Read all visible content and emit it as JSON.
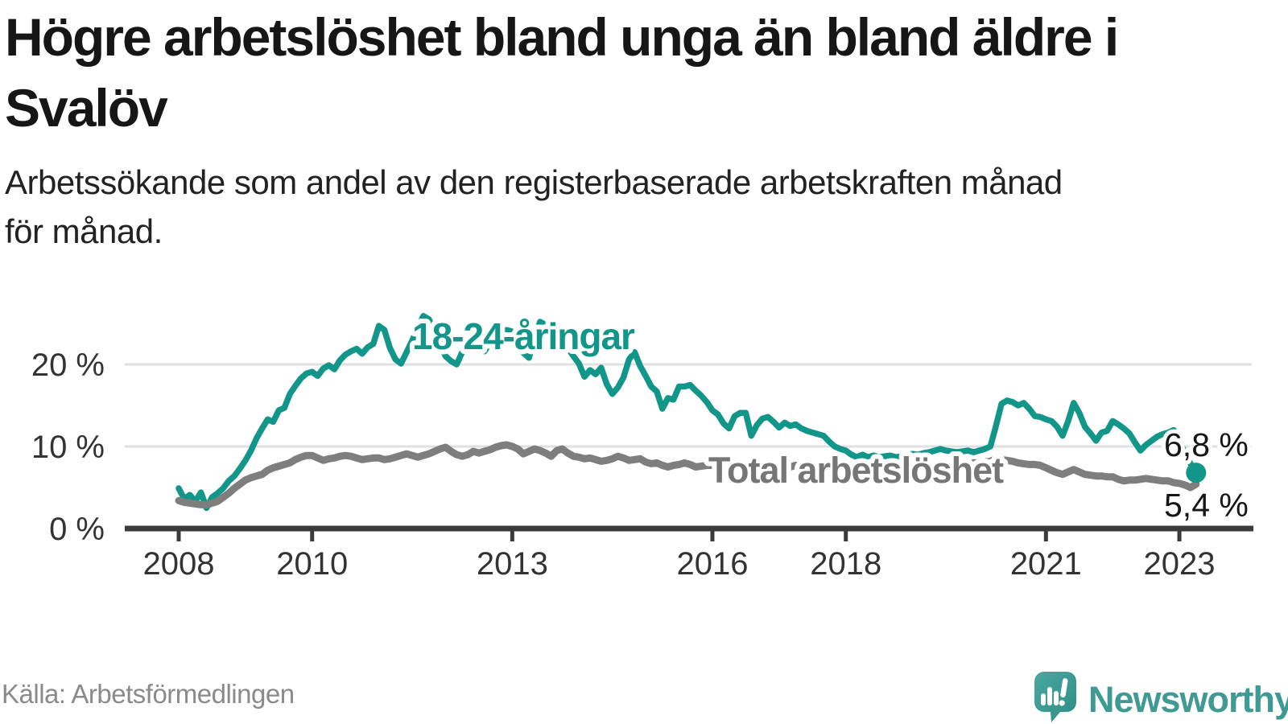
{
  "title_lines": [
    "Högre arbetslöshet bland unga än bland äldre i",
    "Svalöv"
  ],
  "subtitle_lines": [
    "Arbetssökande som andel av den registerbaserade arbetskraften månad",
    "för månad."
  ],
  "source": "Källa: Arbetsförmedlingen",
  "logo": {
    "text": "Newsworthy",
    "color": "#3E9A92",
    "icon": "speech-bubble-bar-chart-exclamation"
  },
  "colors": {
    "youth_line": "#12968A",
    "total_line": "#7E7E7E",
    "total_label": "#767676",
    "axis": "#3b3b3b",
    "grid": "#e0e0e0",
    "tick_label": "#333333",
    "end_label": "#161616"
  },
  "chart_data": {
    "type": "line",
    "unit": "%",
    "frequency": "monthly",
    "x_start": "2008-01",
    "x_end": "2023-04",
    "grid": "horizontal",
    "legend_position": "inline-annotations",
    "x_tick_years": [
      2008,
      2010,
      2013,
      2016,
      2018,
      2021,
      2023
    ],
    "x_tick_labels": [
      "2008",
      "2010",
      "2013",
      "2016",
      "2018",
      "2021",
      "2023"
    ],
    "y_ticks": [
      0,
      10,
      20
    ],
    "y_tick_labels": [
      "0 %",
      "10 %",
      "20 %"
    ],
    "ylim": [
      0,
      26.5
    ],
    "series": [
      {
        "name": "18-24-åringar",
        "color": "#12968A",
        "end_label": "6,8 %",
        "end_value": 6.8,
        "values": [
          4.9,
          3.6,
          4.1,
          3.3,
          4.4,
          2.5,
          3.8,
          4.3,
          4.9,
          5.8,
          6.4,
          7.3,
          8.3,
          9.5,
          11.0,
          12.2,
          13.3,
          13.0,
          14.4,
          14.7,
          16.4,
          17.4,
          18.3,
          18.9,
          19.1,
          18.6,
          19.5,
          19.9,
          19.4,
          20.5,
          21.2,
          21.6,
          21.9,
          21.3,
          22.1,
          22.5,
          24.7,
          24.2,
          22.0,
          20.6,
          20.1,
          21.5,
          22.9,
          24.5,
          25.9,
          25.5,
          24.0,
          22.5,
          21.0,
          20.4,
          20.0,
          21.5,
          23.0,
          23.5,
          22.5,
          21.6,
          22.6,
          23.6,
          24.0,
          24.2,
          24.0,
          22.6,
          21.4,
          20.8,
          23.2,
          25.2,
          24.8,
          24.0,
          23.4,
          22.8,
          22.0,
          21.0,
          20.1,
          18.5,
          19.3,
          18.8,
          19.6,
          17.6,
          16.4,
          17.2,
          18.4,
          20.6,
          21.5,
          19.8,
          18.6,
          17.3,
          16.7,
          14.6,
          15.9,
          15.7,
          17.3,
          17.3,
          17.5,
          16.8,
          16.2,
          15.4,
          14.4,
          13.9,
          12.8,
          12.2,
          13.7,
          14.1,
          14.1,
          11.3,
          12.6,
          13.4,
          13.6,
          13.0,
          12.3,
          12.9,
          12.5,
          12.7,
          12.2,
          11.9,
          11.7,
          11.5,
          11.3,
          10.6,
          10.0,
          9.7,
          9.5,
          9.0,
          8.7,
          9.0,
          8.7,
          8.9,
          8.7,
          8.8,
          8.9,
          8.7,
          8.8,
          9.0,
          9.1,
          9.0,
          9.2,
          9.3,
          9.5,
          9.7,
          9.5,
          9.4,
          9.3,
          9.4,
          9.5,
          9.3,
          9.5,
          9.7,
          10.0,
          12.5,
          15.2,
          15.6,
          15.4,
          15.0,
          15.3,
          14.6,
          13.7,
          13.6,
          13.3,
          13.1,
          12.4,
          11.3,
          13.1,
          15.3,
          14.1,
          12.4,
          11.6,
          10.7,
          11.7,
          11.9,
          13.1,
          12.7,
          12.2,
          11.6,
          10.5,
          9.5,
          10.2,
          10.7,
          11.2,
          11.5,
          11.7,
          12.0,
          10.6,
          9.2,
          7.9,
          6.8
        ]
      },
      {
        "name": "Total arbetslöshet",
        "color": "#7E7E7E",
        "end_label": "5,4 %",
        "end_value": 5.4,
        "values": [
          3.4,
          3.2,
          3.1,
          3.0,
          2.9,
          2.9,
          3.1,
          3.3,
          3.8,
          4.3,
          4.9,
          5.4,
          5.9,
          6.2,
          6.4,
          6.6,
          7.1,
          7.4,
          7.6,
          7.8,
          8.0,
          8.4,
          8.7,
          8.9,
          8.9,
          8.6,
          8.3,
          8.5,
          8.6,
          8.8,
          8.9,
          8.8,
          8.6,
          8.4,
          8.5,
          8.6,
          8.6,
          8.4,
          8.5,
          8.7,
          8.9,
          9.1,
          8.9,
          8.7,
          8.9,
          9.1,
          9.4,
          9.7,
          9.9,
          9.4,
          9.0,
          8.8,
          9.0,
          9.4,
          9.2,
          9.4,
          9.6,
          9.9,
          10.1,
          10.2,
          10.0,
          9.7,
          9.1,
          9.4,
          9.7,
          9.5,
          9.2,
          8.8,
          9.5,
          9.7,
          9.2,
          8.8,
          8.7,
          8.5,
          8.6,
          8.4,
          8.2,
          8.3,
          8.5,
          8.8,
          8.6,
          8.3,
          8.4,
          8.5,
          8.1,
          7.9,
          8.0,
          7.7,
          7.5,
          7.7,
          7.8,
          8.0,
          7.8,
          7.5,
          7.6,
          7.7,
          7.7,
          7.8,
          7.5,
          7.4,
          7.6,
          7.8,
          7.6,
          7.4,
          7.5,
          7.6,
          7.4,
          7.5,
          7.6,
          7.4,
          7.5,
          7.7,
          7.5,
          7.4,
          7.3,
          7.2,
          7.4,
          7.5,
          7.3,
          7.2,
          7.2,
          7.1,
          7.3,
          7.2,
          7.0,
          7.2,
          7.3,
          7.2,
          7.1,
          7.2,
          7.4,
          7.3,
          7.4,
          7.5,
          7.4,
          7.3,
          7.5,
          7.6,
          7.5,
          7.6,
          7.7,
          7.6,
          7.8,
          8.0,
          8.0,
          8.1,
          8.2,
          8.5,
          8.4,
          8.3,
          8.2,
          8.0,
          7.9,
          7.8,
          7.8,
          7.7,
          7.4,
          7.1,
          6.8,
          6.6,
          6.9,
          7.2,
          6.9,
          6.6,
          6.5,
          6.4,
          6.4,
          6.3,
          6.3,
          6.0,
          5.8,
          5.9,
          5.9,
          6.0,
          6.1,
          6.0,
          5.9,
          5.8,
          5.8,
          5.6,
          5.5,
          5.3,
          5.0,
          5.4
        ]
      }
    ]
  }
}
